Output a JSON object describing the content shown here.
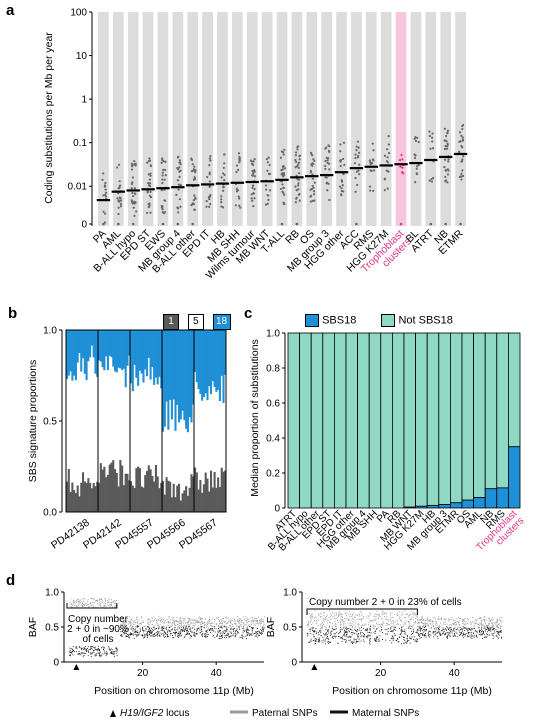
{
  "panel_a": {
    "letter": "a",
    "ylabel": "Coding substitutions per Mb per year",
    "yticks": [
      "100",
      "10",
      "1",
      "0.1",
      "0.01",
      "0"
    ],
    "highlight_color": "#f7c6dc",
    "highlight_text_color": "#e0338a",
    "chart_data": {
      "type": "scatter",
      "yscale": "log",
      "categories": [
        "PA",
        "AML",
        "B-ALL hypo",
        "EPD ST",
        "EWS",
        "MB group 4",
        "B-ALL other",
        "EPD IT",
        "HB",
        "MB SHH",
        "Wilms tumour",
        "MB WNT",
        "T-ALL",
        "RB",
        "OS",
        "MB group 3",
        "HGG other",
        "ACC",
        "RMS",
        "HGG K27M",
        "Trophoblast clusters",
        "BL",
        "ATRT",
        "NB",
        "ETMR"
      ],
      "medians": [
        0.0048,
        0.0075,
        0.008,
        0.0085,
        0.009,
        0.0095,
        0.0105,
        0.011,
        0.0115,
        0.012,
        0.0125,
        0.013,
        0.014,
        0.016,
        0.017,
        0.018,
        0.021,
        0.026,
        0.028,
        0.03,
        0.032,
        0.034,
        0.04,
        0.047,
        0.055
      ],
      "highlight": "Trophoblast clusters"
    }
  },
  "panel_b": {
    "letter": "b",
    "ylabel": "SBS signature proportions",
    "yticks": [
      "1.0",
      "0.5",
      "0.0"
    ],
    "legend": [
      {
        "label": "1",
        "color": "#5a5a5a"
      },
      {
        "label": "5",
        "color": "#ffffff"
      },
      {
        "label": "18",
        "color": "#1f8fd6"
      }
    ],
    "chart_data": {
      "type": "bar",
      "categories": [
        "PD42138",
        "PD42142",
        "PD45557",
        "PD45566",
        "PD45567"
      ],
      "series": [
        {
          "name": "1",
          "values": [
            0.16,
            0.22,
            0.18,
            0.14,
            0.17
          ]
        },
        {
          "name": "5",
          "values": [
            0.66,
            0.56,
            0.58,
            0.38,
            0.52
          ]
        },
        {
          "name": "18",
          "values": [
            0.18,
            0.22,
            0.24,
            0.48,
            0.31
          ]
        }
      ],
      "ylim": [
        0,
        1
      ]
    }
  },
  "panel_c": {
    "letter": "c",
    "ylabel": "Median proportion of substitutions",
    "yticks": [
      "1.0",
      "0.8",
      "0.6",
      "0.4",
      "0.2",
      "0"
    ],
    "legend": [
      {
        "label": "SBS18",
        "color": "#1f8fd6"
      },
      {
        "label": "Not SBS18",
        "color": "#8fd9c4"
      }
    ],
    "chart_data": {
      "type": "bar",
      "stacked": true,
      "categories": [
        "ATRT",
        "B-ALL hypo",
        "B-ALL other",
        "EPD ST",
        "EPD IT",
        "HGG other",
        "MB group 4",
        "MB SHH",
        "PA",
        "RB",
        "MB WNT",
        "HGG K27M",
        "HB",
        "MB group 3",
        "ETMR",
        "OS",
        "AML",
        "NB",
        "RMS",
        "Trophoblast clusters"
      ],
      "series": [
        {
          "name": "SBS18",
          "values": [
            0,
            0,
            0,
            0,
            0,
            0,
            0,
            0,
            0,
            0,
            0.005,
            0.01,
            0.015,
            0.02,
            0.03,
            0.045,
            0.06,
            0.11,
            0.115,
            0.35
          ]
        },
        {
          "name": "Not SBS18",
          "values": [
            1,
            1,
            1,
            1,
            1,
            1,
            1,
            1,
            1,
            1,
            0.995,
            0.99,
            0.985,
            0.98,
            0.97,
            0.955,
            0.94,
            0.89,
            0.885,
            0.65
          ]
        }
      ],
      "ylim": [
        0,
        1
      ],
      "highlight": "Trophoblast clusters"
    }
  },
  "panel_d": {
    "letter": "d",
    "ylabel": "BAF",
    "yticks": [
      "1.0",
      "0.5",
      "0"
    ],
    "xticks": [
      "20",
      "40"
    ],
    "xlabel": "Position on chromosome 11p (Mb)",
    "left_annotation": [
      "Copy number",
      "2 + 0 in ~90%",
      "of cells"
    ],
    "right_annotation": "Copy number 2 + 0 in 23% of cells",
    "legend_locus": "H19/IGF2",
    "legend_locus_suffix": " locus",
    "legend_paternal": "Paternal SNPs",
    "legend_maternal": "Maternal SNPs",
    "paternal_color": "#9a9a9a",
    "maternal_color": "#111111"
  }
}
